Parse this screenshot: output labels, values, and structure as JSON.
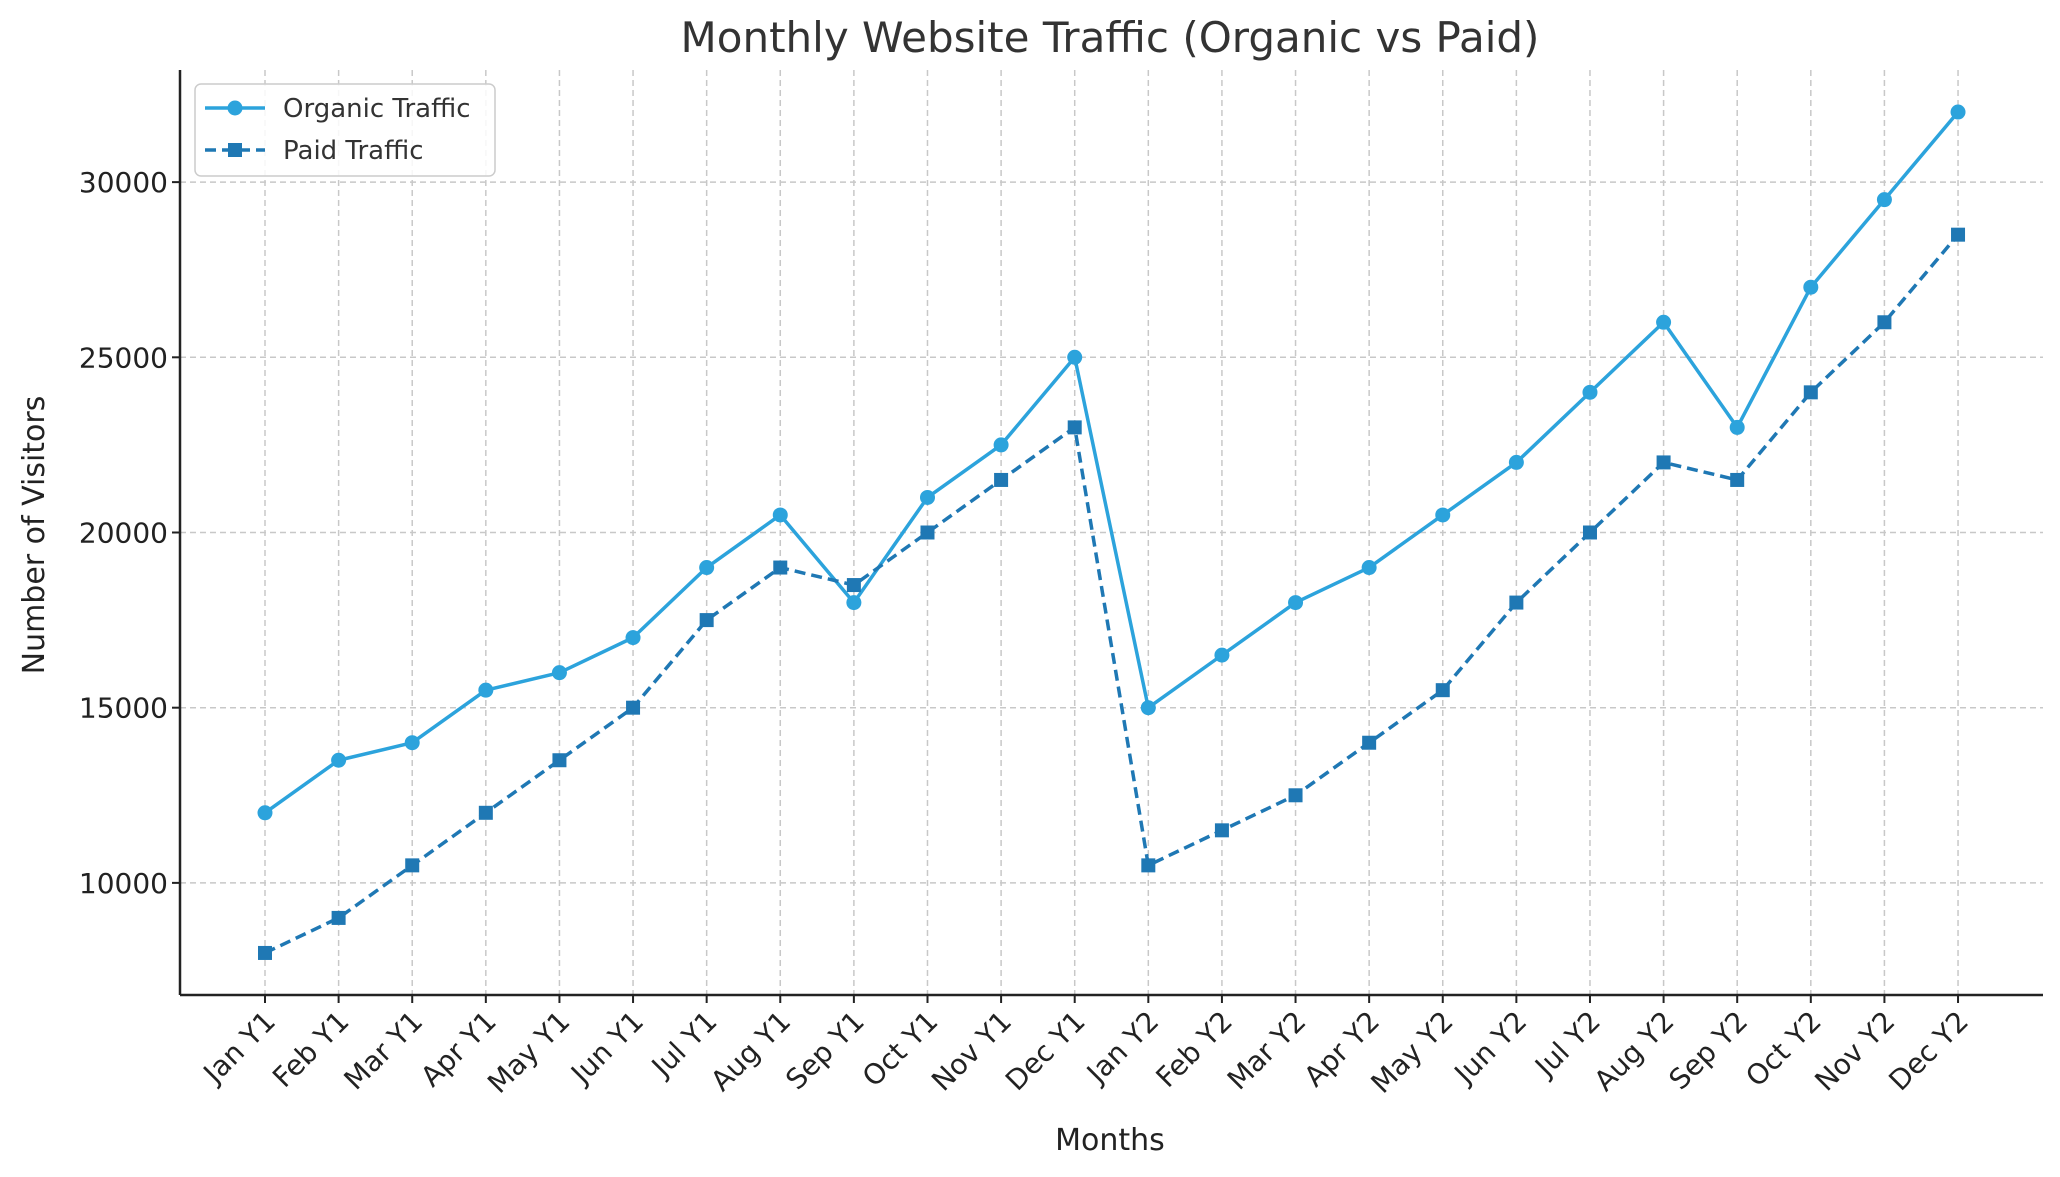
{
  "chart_data": {
    "type": "line",
    "title": "Monthly Website Traffic (Organic vs Paid)",
    "xlabel": "Months",
    "ylabel": "Number of Visitors",
    "categories": [
      "Jan Y1",
      "Feb Y1",
      "Mar Y1",
      "Apr Y1",
      "May Y1",
      "Jun Y1",
      "Jul Y1",
      "Aug Y1",
      "Sep Y1",
      "Oct Y1",
      "Nov Y1",
      "Dec Y1",
      "Jan Y2",
      "Feb Y2",
      "Mar Y2",
      "Apr Y2",
      "May Y2",
      "Jun Y2",
      "Jul Y2",
      "Aug Y2",
      "Sep Y2",
      "Oct Y2",
      "Nov Y2",
      "Dec Y2"
    ],
    "yticks": [
      10000,
      15000,
      20000,
      25000,
      30000
    ],
    "ylim": [
      6800,
      33200
    ],
    "grid": true,
    "legend_position": "top-left",
    "series": [
      {
        "name": "Organic Traffic",
        "color": "#2ca3dc",
        "line_style": "solid",
        "marker": "circle",
        "values": [
          12000,
          13500,
          14000,
          15500,
          16000,
          17000,
          19000,
          20500,
          18000,
          21000,
          22500,
          25000,
          15000,
          16500,
          18000,
          19000,
          20500,
          22000,
          24000,
          26000,
          23000,
          27000,
          29500,
          32000
        ]
      },
      {
        "name": "Paid Traffic",
        "color": "#1f78b4",
        "line_style": "dashed",
        "marker": "square",
        "values": [
          8000,
          9000,
          10500,
          12000,
          13500,
          15000,
          17500,
          19000,
          18500,
          20000,
          21500,
          23000,
          10500,
          11500,
          12500,
          14000,
          15500,
          18000,
          20000,
          22000,
          21500,
          24000,
          26000,
          28500
        ]
      }
    ]
  }
}
